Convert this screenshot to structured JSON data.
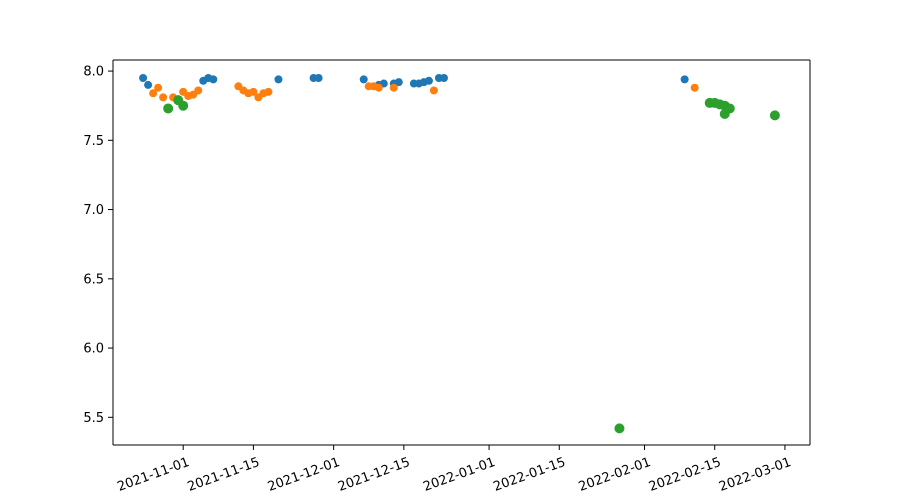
{
  "chart_data": {
    "type": "scatter",
    "title": "",
    "xlabel": "",
    "ylabel": "",
    "grid": false,
    "x_axis_type": "date",
    "xlim": [
      "2021-10-18",
      "2022-03-06"
    ],
    "ylim": [
      5.3,
      8.08
    ],
    "x_ticks": [
      "2021-11-01",
      "2021-11-15",
      "2021-12-01",
      "2021-12-15",
      "2022-01-01",
      "2022-01-15",
      "2022-02-01",
      "2022-02-15",
      "2022-03-01"
    ],
    "y_ticks": [
      "5.5",
      "6.0",
      "6.5",
      "7.0",
      "7.5",
      "8.0"
    ],
    "series": [
      {
        "color": "#1f77b4",
        "marker_size": "small",
        "points": [
          {
            "x": "2021-10-24",
            "y": 7.95
          },
          {
            "x": "2021-10-25",
            "y": 7.9
          },
          {
            "x": "2021-11-05",
            "y": 7.93
          },
          {
            "x": "2021-11-06",
            "y": 7.95
          },
          {
            "x": "2021-11-07",
            "y": 7.94
          },
          {
            "x": "2021-11-20",
            "y": 7.94
          },
          {
            "x": "2021-11-27",
            "y": 7.95
          },
          {
            "x": "2021-11-28",
            "y": 7.95
          },
          {
            "x": "2021-12-07",
            "y": 7.94
          },
          {
            "x": "2021-12-10",
            "y": 7.9
          },
          {
            "x": "2021-12-11",
            "y": 7.91
          },
          {
            "x": "2021-12-13",
            "y": 7.91
          },
          {
            "x": "2021-12-14",
            "y": 7.92
          },
          {
            "x": "2021-12-17",
            "y": 7.91
          },
          {
            "x": "2021-12-18",
            "y": 7.91
          },
          {
            "x": "2021-12-19",
            "y": 7.92
          },
          {
            "x": "2021-12-20",
            "y": 7.93
          },
          {
            "x": "2021-12-22",
            "y": 7.95
          },
          {
            "x": "2021-12-23",
            "y": 7.95
          },
          {
            "x": "2022-02-09",
            "y": 7.94
          }
        ]
      },
      {
        "color": "#ff7f0e",
        "marker_size": "small",
        "points": [
          {
            "x": "2021-10-26",
            "y": 7.84
          },
          {
            "x": "2021-10-27",
            "y": 7.88
          },
          {
            "x": "2021-10-28",
            "y": 7.81
          },
          {
            "x": "2021-10-30",
            "y": 7.81
          },
          {
            "x": "2021-11-01",
            "y": 7.85
          },
          {
            "x": "2021-11-02",
            "y": 7.82
          },
          {
            "x": "2021-11-03",
            "y": 7.83
          },
          {
            "x": "2021-11-04",
            "y": 7.86
          },
          {
            "x": "2021-11-12",
            "y": 7.89
          },
          {
            "x": "2021-11-13",
            "y": 7.86
          },
          {
            "x": "2021-11-14",
            "y": 7.84
          },
          {
            "x": "2021-11-15",
            "y": 7.85
          },
          {
            "x": "2021-11-16",
            "y": 7.81
          },
          {
            "x": "2021-11-17",
            "y": 7.84
          },
          {
            "x": "2021-11-18",
            "y": 7.85
          },
          {
            "x": "2021-12-08",
            "y": 7.89
          },
          {
            "x": "2021-12-09",
            "y": 7.89
          },
          {
            "x": "2021-12-10",
            "y": 7.88
          },
          {
            "x": "2021-12-13",
            "y": 7.88
          },
          {
            "x": "2021-12-21",
            "y": 7.86
          },
          {
            "x": "2022-02-11",
            "y": 7.88
          }
        ]
      },
      {
        "color": "#2ca02c",
        "marker_size": "large",
        "points": [
          {
            "x": "2021-10-29",
            "y": 7.73
          },
          {
            "x": "2021-10-31",
            "y": 7.79
          },
          {
            "x": "2021-11-01",
            "y": 7.75
          },
          {
            "x": "2022-01-27",
            "y": 5.42
          },
          {
            "x": "2022-02-14",
            "y": 7.77
          },
          {
            "x": "2022-02-15",
            "y": 7.77
          },
          {
            "x": "2022-02-16",
            "y": 7.76
          },
          {
            "x": "2022-02-17",
            "y": 7.75
          },
          {
            "x": "2022-02-17",
            "y": 7.69
          },
          {
            "x": "2022-02-18",
            "y": 7.73
          },
          {
            "x": "2022-02-27",
            "y": 7.68
          }
        ]
      }
    ]
  }
}
